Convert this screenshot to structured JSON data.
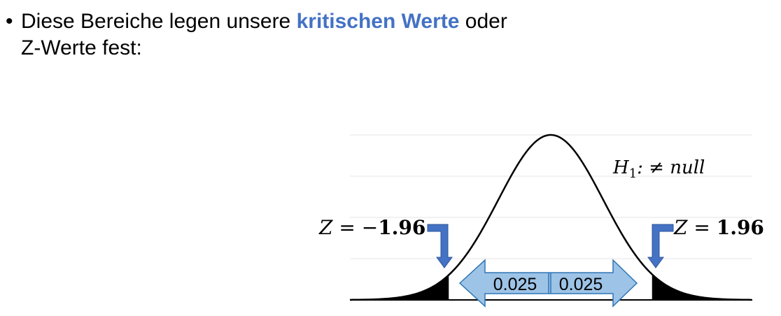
{
  "bullet": {
    "symbol": "•",
    "line1_before": "Diese Bereiche legen unsere ",
    "line1_highlight": "kritischen Werte",
    "line1_after": " oder",
    "line2": "Z-Werte fest:"
  },
  "diagram": {
    "hypothesis": {
      "H": "H",
      "sub": "1",
      "rest": ": ≠ null"
    },
    "left_label": {
      "prefix": "Z = −",
      "value": "1.96"
    },
    "right_label": {
      "prefix": "Z = ",
      "value": "1.96"
    },
    "left_area": "0.025",
    "right_area": "0.025",
    "colors": {
      "arrow_fill": "#9DC3E6",
      "arrow_stroke": "#2E75B6",
      "bent_arrow": "#4472C4",
      "tail_fill": "#000000"
    }
  }
}
